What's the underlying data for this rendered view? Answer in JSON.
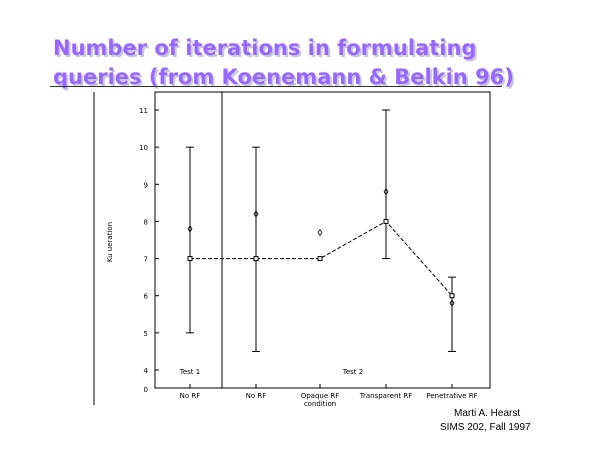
{
  "slide": {
    "title_line1": "Number of iterations in formulating",
    "title_line2": "queries (from Koenemann & Belkin 96)",
    "credit_name": "Marti A. Hearst",
    "credit_course": "SIMS 202, Fall 1997",
    "title_color": "#9966ff"
  },
  "chart_data": {
    "type": "line",
    "ylabel": "Ku ueration",
    "ylim": [
      3.5,
      11.5
    ],
    "yticks": [
      "4",
      "5",
      "6",
      "7",
      "8",
      "9",
      "10",
      "11"
    ],
    "y_zero_label": "0",
    "categories": [
      "No RF",
      "No RF",
      "Opaque RF",
      "Transparent RF",
      "Penetrative RF"
    ],
    "category_sublabels": [
      "",
      "",
      "condition",
      "",
      ""
    ],
    "groups": [
      "Test 1",
      "Test 2"
    ],
    "mean": [
      7.0,
      7.0,
      7.0,
      8.0,
      6.0
    ],
    "other": [
      7.8,
      8.2,
      7.7,
      8.8,
      5.8
    ],
    "error_low": [
      5.0,
      4.5,
      null,
      7.0,
      4.5
    ],
    "error_high": [
      10.0,
      10.0,
      null,
      11.0,
      6.5
    ],
    "grid": false
  }
}
